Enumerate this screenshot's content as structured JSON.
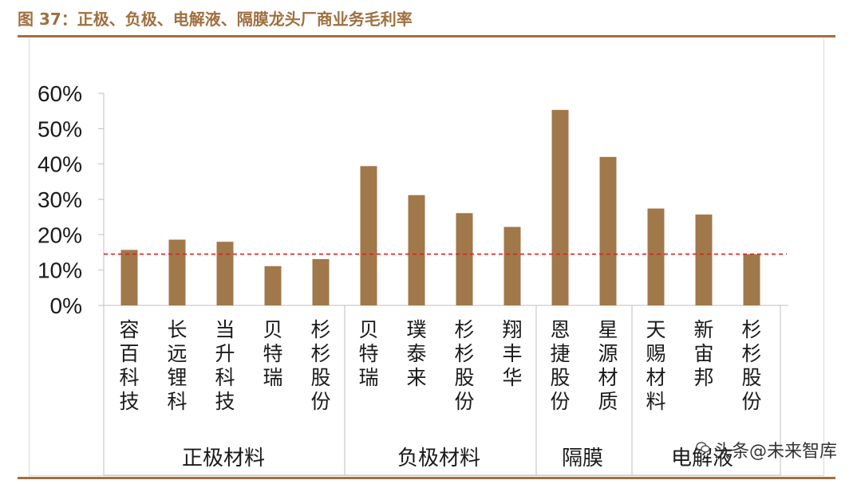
{
  "header": {
    "title": "图 37：正极、负极、电解液、隔膜龙头厂商业务毛利率"
  },
  "colors": {
    "bar": "#A0784A",
    "accent": "#A07040",
    "reference_line": "#E02020"
  },
  "watermark": {
    "text": "头条@未来智库",
    "icon": "wechat-bubble-icon"
  },
  "chart_data": {
    "type": "bar",
    "title": "正极、负极、电解液、隔膜龙头厂商业务毛利率",
    "ylabel": "",
    "ylim": [
      0,
      0.6
    ],
    "yticks": [
      "0%",
      "10%",
      "20%",
      "30%",
      "40%",
      "50%",
      "60%"
    ],
    "ytick_values": [
      0,
      0.1,
      0.2,
      0.3,
      0.4,
      0.5,
      0.6
    ],
    "categories": [
      "容百科技",
      "长远锂科",
      "当升科技",
      "贝特瑞",
      "杉杉股份",
      "贝特瑞",
      "璞泰来",
      "杉杉股份",
      "翔丰华",
      "恩捷股份",
      "星源材质",
      "天赐材料",
      "新宙邦",
      "杉杉股份"
    ],
    "values": [
      0.157,
      0.186,
      0.18,
      0.111,
      0.131,
      0.394,
      0.312,
      0.261,
      0.222,
      0.553,
      0.42,
      0.274,
      0.257,
      0.145
    ],
    "groups": [
      {
        "label": "正极材料",
        "count": 5
      },
      {
        "label": "负极材料",
        "count": 4
      },
      {
        "label": "隔膜",
        "count": 2
      },
      {
        "label": "电解液",
        "count": 3
      }
    ],
    "reference_line": {
      "value": 0.145,
      "style": "dashed"
    },
    "grid": false
  }
}
